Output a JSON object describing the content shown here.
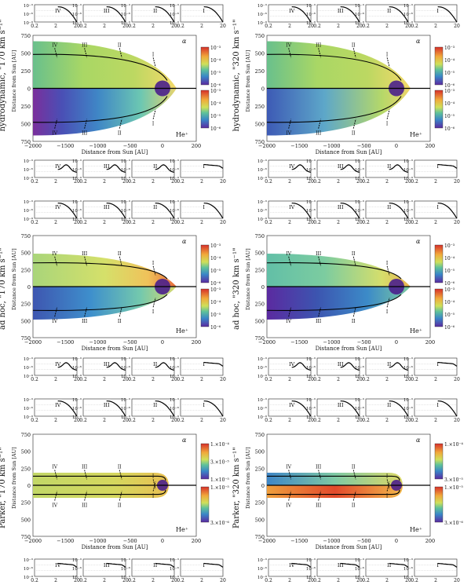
{
  "figure": {
    "rows": [
      {
        "id": "hydro",
        "left_label": "hydrodynamic, \"170 km s⁻¹\"",
        "right_label": "hydrodynamic, \"320 km s⁻¹\"",
        "y_ticks": [
          "750",
          "500",
          "250",
          "0",
          "250",
          "500",
          "750"
        ],
        "has_x_axis": true
      },
      {
        "id": "adhoc",
        "left_label": "ad hoc, \"170 km s⁻¹\"",
        "right_label": "ad hoc, \"320 km s⁻¹\"",
        "y_ticks": [
          "750",
          "500",
          "250",
          "0",
          "250",
          "500",
          "750"
        ],
        "has_x_axis": true
      },
      {
        "id": "parker",
        "left_label": "Parker, \"170 km s⁻¹\"",
        "right_label": "Parker, \"320 km s⁻¹\"",
        "y_ticks": [
          "750",
          "500",
          "250",
          "0",
          "250",
          "500",
          "750"
        ],
        "has_x_axis": true
      }
    ],
    "x_ticks": [
      "−2000",
      "−1500",
      "−1000",
      "−500",
      "0",
      "200"
    ],
    "xlabel": "Distance from Sun [AU]",
    "ylabel": "Distance from Sun [AU]",
    "top_species": "α",
    "bottom_species": "He⁺",
    "line_labels_top": [
      "IV",
      "III",
      "II",
      "I"
    ],
    "line_labels_bottom": [
      "IV",
      "III",
      "II",
      "I"
    ],
    "colorbar_hydro_adhoc": [
      "10⁻³",
      "10⁻⁴",
      "10⁻⁵",
      "10⁻⁶"
    ],
    "colorbar_parker_left_top": [
      "1.×10⁻⁴",
      "3.×10⁻⁵",
      "1.×10⁻⁵"
    ],
    "colorbar_parker_left_bottom": [
      "1.×10⁻⁵",
      "3.×10⁻⁶"
    ],
    "colorbar_parker_right_top": [
      "1.×10⁻⁴",
      "3.×10⁻⁵"
    ],
    "colorbar_parker_right_bottom": [
      "1.×10⁻⁵",
      "3.×10⁻⁶"
    ],
    "mini_y_ticks": [
      "10⁻³",
      "10⁻⁶",
      "10⁻⁹"
    ],
    "mini_x_ticks": [
      "0.2",
      "2",
      "20"
    ],
    "mini_labels": [
      "IV",
      "III",
      "II",
      "I"
    ]
  }
}
